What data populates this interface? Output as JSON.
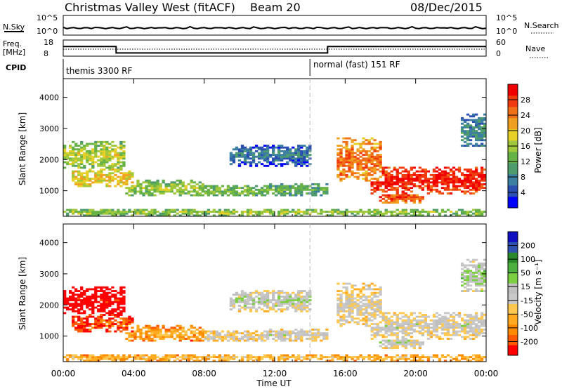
{
  "header": {
    "station": "Christmas Valley West (fitACF)",
    "beam": "Beam 20",
    "date": "08/Dec/2015"
  },
  "aux_panels": {
    "nsky_label": "N.Sky",
    "nsky_ticks": [
      "10^5",
      "10^0"
    ],
    "nsearch_label": "N.Search",
    "freq_label_1": "Freq.",
    "freq_label_2": "[MHz]",
    "freq_ticks": [
      "18",
      "8"
    ],
    "nave_label": "Nave",
    "nave_ticks": [
      "60",
      "0"
    ],
    "cpid_label": "CPID",
    "cpid_1": "themis 3300 RF",
    "cpid_2": "normal (fast) 151 RF"
  },
  "colors": {
    "power_scale": [
      "#0000ff",
      "#2b4fb0",
      "#3d7fa0",
      "#4e9c6e",
      "#67b247",
      "#a0c83a",
      "#e6d028",
      "#f0a020",
      "#f07018",
      "#f03a10",
      "#f00000"
    ],
    "velocity_scale": [
      "#ff0000",
      "#ff5a00",
      "#ff8c00",
      "#ffaa20",
      "#ffc850",
      "#c8c8c8",
      "#c0c0c0",
      "#7ccf40",
      "#4cb040",
      "#2a8a2a",
      "#3050b0",
      "#1010c0"
    ]
  },
  "chart_data": [
    {
      "type": "line",
      "title": "Christmas Valley West (fitACF)",
      "series": [
        {
          "name": "N.Sky",
          "x": [
            "00:00",
            "03:00",
            "06:00",
            "09:00",
            "12:00",
            "15:00",
            "18:00",
            "21:00",
            "24:00"
          ],
          "values": [
            30,
            30,
            30,
            30,
            30,
            30,
            30,
            30,
            30
          ]
        }
      ],
      "yticks": [
        "10^0",
        "10^5"
      ]
    },
    {
      "type": "line",
      "series": [
        {
          "name": "Freq.",
          "x": [
            "00:00",
            "03:00",
            "03:00",
            "15:00",
            "15:00",
            "24:00"
          ],
          "values": [
            14,
            14,
            10,
            10,
            14,
            14
          ]
        },
        {
          "name": "Nave",
          "x": [
            "00:00",
            "03:00",
            "03:00",
            "15:00",
            "15:00",
            "24:00"
          ],
          "values": [
            26,
            26,
            26,
            26,
            26,
            26
          ]
        }
      ],
      "ylabel": "Freq. [MHz]",
      "ylim": [
        8,
        18
      ],
      "y2lim": [
        0,
        60
      ]
    },
    {
      "type": "heatmap",
      "quantity": "Power",
      "xlabel": "",
      "ylabel": "Slant Range [km]",
      "xticks": [
        "00:00",
        "04:00",
        "08:00",
        "12:00",
        "16:00",
        "20:00",
        "00:00"
      ],
      "yticks": [
        1000,
        2000,
        3000,
        4000
      ],
      "ylim": [
        180,
        4600
      ],
      "colorbar_label": "Power [dB]",
      "colorbar_ticks": [
        4,
        8,
        12,
        16,
        20,
        24,
        28
      ],
      "cpid_change_time": "14:00",
      "bands": [
        {
          "t0": 0.0,
          "t1": 3.5,
          "r0": 1700,
          "r1": 2600,
          "level": 0.55
        },
        {
          "t0": 0.5,
          "t1": 4.0,
          "r0": 1100,
          "r1": 1700,
          "level": 0.65
        },
        {
          "t0": 3.5,
          "t1": 8.0,
          "r0": 850,
          "r1": 1350,
          "level": 0.5
        },
        {
          "t0": 8.0,
          "t1": 11.5,
          "r0": 800,
          "r1": 1200,
          "level": 0.45
        },
        {
          "t0": 11.5,
          "t1": 15.0,
          "r0": 850,
          "r1": 1250,
          "level": 0.4
        },
        {
          "t0": 9.5,
          "t1": 14.0,
          "r0": 1800,
          "r1": 2500,
          "level": 0.25
        },
        {
          "t0": 15.5,
          "t1": 18.0,
          "r0": 1300,
          "r1": 2700,
          "level": 0.8
        },
        {
          "t0": 17.5,
          "t1": 24.0,
          "r0": 900,
          "r1": 1800,
          "level": 0.95
        },
        {
          "t0": 18.0,
          "t1": 20.5,
          "r0": 600,
          "r1": 1000,
          "level": 0.85
        },
        {
          "t0": 22.5,
          "t1": 24.0,
          "r0": 2400,
          "r1": 3500,
          "level": 0.3
        },
        {
          "t0": 0.0,
          "t1": 24.0,
          "r0": 200,
          "r1": 420,
          "level": 0.5
        }
      ]
    },
    {
      "type": "heatmap",
      "quantity": "Velocity",
      "xlabel": "Time UT",
      "ylabel": "Slant Range [km]",
      "xticks": [
        "00:00",
        "04:00",
        "08:00",
        "12:00",
        "16:00",
        "20:00",
        "00:00"
      ],
      "yticks": [
        1000,
        2000,
        3000,
        4000
      ],
      "ylim": [
        180,
        4600
      ],
      "colorbar_label": "Velocity [m s⁻¹]",
      "colorbar_ticks": [
        200,
        100,
        50,
        15,
        -15,
        -50,
        -100,
        -200
      ],
      "cpid_change_time": "14:00",
      "bands": [
        {
          "t0": 0.0,
          "t1": 3.5,
          "r0": 1700,
          "r1": 2600,
          "level": 0.0
        },
        {
          "t0": 0.5,
          "t1": 4.0,
          "r0": 1100,
          "r1": 1700,
          "level": 0.15
        },
        {
          "t0": 3.5,
          "t1": 8.0,
          "r0": 850,
          "r1": 1350,
          "level": 0.3
        },
        {
          "t0": 8.0,
          "t1": 11.5,
          "r0": 800,
          "r1": 1200,
          "level": 0.45
        },
        {
          "t0": 11.5,
          "t1": 15.0,
          "r0": 850,
          "r1": 1250,
          "level": 0.5
        },
        {
          "t0": 9.5,
          "t1": 14.0,
          "r0": 1800,
          "r1": 2500,
          "level": 0.55
        },
        {
          "t0": 15.5,
          "t1": 18.0,
          "r0": 1300,
          "r1": 2700,
          "level": 0.48
        },
        {
          "t0": 17.5,
          "t1": 24.0,
          "r0": 900,
          "r1": 1800,
          "level": 0.5
        },
        {
          "t0": 18.0,
          "t1": 20.5,
          "r0": 600,
          "r1": 1000,
          "level": 0.52
        },
        {
          "t0": 22.5,
          "t1": 24.0,
          "r0": 2400,
          "r1": 3500,
          "level": 0.6
        },
        {
          "t0": 0.0,
          "t1": 24.0,
          "r0": 200,
          "r1": 420,
          "level": 0.35
        }
      ]
    }
  ]
}
